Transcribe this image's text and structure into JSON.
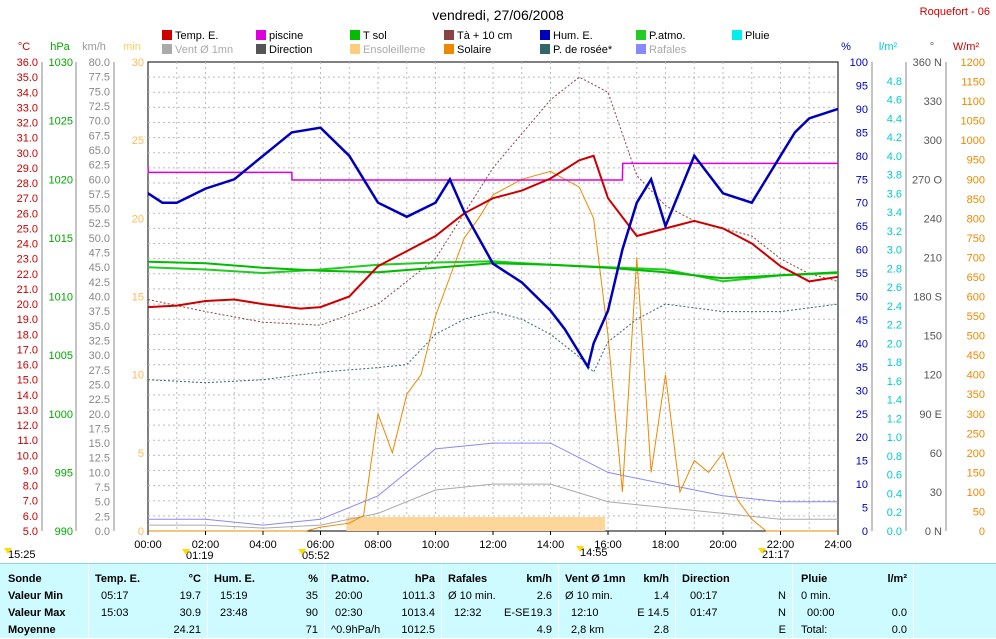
{
  "title": "vendredi, 27/06/2008",
  "station": "Roquefort - 06",
  "chart_data": {
    "type": "line",
    "title": "vendredi, 27/06/2008",
    "x_ticks": [
      "00:00",
      "02:00",
      "04:00",
      "06:00",
      "08:00",
      "10:00",
      "12:00",
      "14:00",
      "16:00",
      "18:00",
      "20:00",
      "22:00",
      "24:00"
    ],
    "x_range_hours": [
      0,
      24
    ],
    "grid": true,
    "legend_position": "top",
    "legend": [
      {
        "name": "Temp. E.",
        "color": "#cc0000"
      },
      {
        "name": "piscine",
        "color": "#dd00dd"
      },
      {
        "name": "T sol",
        "color": "#00bb00"
      },
      {
        "name": "Tà + 10 cm",
        "color": "#884444"
      },
      {
        "name": "Hum. E.",
        "color": "#0000bb"
      },
      {
        "name": "P.atmo.",
        "color": "#22cc22"
      },
      {
        "name": "Pluie",
        "color": "#00eeee"
      },
      {
        "name": "Vent Ø 1mn",
        "color": "#aaaaaa"
      },
      {
        "name": "Direction",
        "color": "#555555"
      },
      {
        "name": "Ensoleilleme",
        "color": "#ffcc80"
      },
      {
        "name": "Solaire",
        "color": "#ee8800"
      },
      {
        "name": "P. de rosée*",
        "color": "#336666"
      },
      {
        "name": "Rafales",
        "color": "#8888ff"
      }
    ],
    "axes": {
      "temp_c": {
        "unit": "°C",
        "min": 5,
        "max": 36,
        "step": 1,
        "color": "#cc0000"
      },
      "pressure_hpa": {
        "unit": "hPa",
        "min": 990,
        "max": 1030,
        "color": "#00aa00"
      },
      "wind_kmh": {
        "unit": "km/h",
        "min": 0,
        "max": 80,
        "color": "#999999"
      },
      "minutes": {
        "unit": "min",
        "min": 0,
        "max": 30,
        "color": "#ffcc66"
      },
      "humidity_pct": {
        "unit": "%",
        "min": 0,
        "max": 100,
        "color": "#0000bb"
      },
      "rain_lm2": {
        "unit": "l/m²",
        "min": 0,
        "max": 5,
        "color": "#00cccc"
      },
      "direction_deg": {
        "unit": "°",
        "min": 0,
        "max": 360,
        "labels": [
          "0 N",
          "30",
          "60",
          "90 E",
          "120",
          "150",
          "180 S",
          "210",
          "240",
          "270 O",
          "300",
          "330",
          "360 N"
        ]
      },
      "solar_wm2": {
        "unit": "W/m²",
        "min": 0,
        "max": 1200,
        "color": "#ee8800"
      }
    },
    "series": [
      {
        "name": "Temp. E.",
        "axis": "temp_c",
        "x": [
          0,
          1,
          2,
          3,
          4,
          5.3,
          6,
          7,
          8,
          9,
          10,
          11,
          12,
          13,
          14,
          15,
          15.5,
          16,
          17,
          18,
          19,
          20,
          21,
          22,
          23,
          24
        ],
        "values": [
          19.8,
          19.9,
          20.2,
          20.3,
          20.0,
          19.7,
          19.8,
          20.5,
          22.5,
          23.5,
          24.5,
          26.0,
          27.0,
          27.5,
          28.3,
          29.5,
          29.8,
          27.0,
          24.5,
          25.0,
          25.5,
          25.0,
          24.0,
          22.5,
          21.5,
          21.8
        ]
      },
      {
        "name": "Hum. E.",
        "axis": "humidity_pct",
        "x": [
          0,
          0.5,
          1,
          2,
          3,
          4,
          5,
          6,
          7,
          8,
          9,
          10,
          10.5,
          11,
          12,
          13,
          14,
          14.5,
          15.3,
          15.5,
          16,
          16.5,
          17,
          17.5,
          18,
          19,
          20,
          21,
          22,
          22.5,
          23,
          24
        ],
        "values": [
          72,
          70,
          70,
          73,
          75,
          80,
          85,
          86,
          80,
          70,
          67,
          70,
          75,
          68,
          57,
          53,
          47,
          43,
          35,
          40,
          47,
          60,
          70,
          75,
          65,
          80,
          72,
          70,
          80,
          85,
          88,
          90
        ]
      },
      {
        "name": "T sol",
        "axis": "temp_c",
        "x": [
          0,
          2,
          4,
          6,
          8,
          10,
          12,
          14,
          16,
          18,
          20,
          22,
          24
        ],
        "values": [
          22.8,
          22.7,
          22.4,
          22.2,
          22.1,
          22.4,
          22.7,
          22.6,
          22.4,
          22.1,
          21.7,
          21.9,
          22.1
        ]
      },
      {
        "name": "piscine",
        "axis": "temp_c",
        "x": [
          0,
          0.01,
          5,
          5.01,
          16.5,
          16.51,
          24
        ],
        "values": [
          29.1,
          28.7,
          28.7,
          28.2,
          28.2,
          29.3,
          29.3
        ]
      },
      {
        "name": "P.atmo.",
        "axis": "pressure_hpa",
        "x": [
          0,
          2,
          4,
          6,
          8,
          10,
          12,
          14,
          16,
          18,
          20,
          22,
          24
        ],
        "values": [
          1012.5,
          1012.3,
          1012.0,
          1012.3,
          1012.7,
          1012.9,
          1013.0,
          1012.7,
          1012.5,
          1012.3,
          1011.3,
          1011.8,
          1012.0
        ]
      },
      {
        "name": "Tà + 10 cm",
        "axis": "temp_c",
        "x": [
          0,
          2,
          4,
          6,
          8,
          10,
          12,
          14,
          15,
          16,
          17,
          18,
          19,
          20,
          21,
          22,
          23,
          24
        ],
        "values": [
          20.3,
          19.5,
          18.8,
          18.6,
          20.0,
          23.0,
          29.0,
          33.5,
          35.0,
          34.0,
          28.5,
          26.5,
          25.5,
          25.0,
          24.5,
          23.0,
          22.0,
          21.5
        ]
      },
      {
        "name": "P. de rosée*",
        "axis": "temp_c",
        "x": [
          0,
          2,
          4,
          6,
          8,
          9,
          10,
          11,
          12,
          13,
          14,
          15,
          15.5,
          16,
          17,
          18,
          20,
          22,
          24
        ],
        "values": [
          15.0,
          14.8,
          15.0,
          15.5,
          15.8,
          16.0,
          18.0,
          19.0,
          19.5,
          19.0,
          18.0,
          16.5,
          15.5,
          17.5,
          19.0,
          20.0,
          19.5,
          19.5,
          20.0
        ]
      },
      {
        "name": "Solaire",
        "axis": "solar_wm2",
        "x": [
          0,
          5.5,
          6,
          7,
          7.5,
          8,
          8.5,
          9,
          9.5,
          10,
          10.5,
          11,
          11.5,
          12,
          12.5,
          13,
          13.5,
          14,
          14.5,
          15,
          15.5,
          16,
          16.5,
          17,
          17.5,
          18,
          18.5,
          19,
          19.5,
          20,
          20.5,
          21,
          21.5,
          24
        ],
        "values": [
          0,
          0,
          10,
          20,
          40,
          300,
          200,
          350,
          400,
          550,
          650,
          750,
          800,
          860,
          880,
          900,
          910,
          920,
          900,
          880,
          800,
          500,
          100,
          700,
          150,
          400,
          100,
          180,
          150,
          200,
          80,
          30,
          0,
          0
        ]
      },
      {
        "name": "Rafales",
        "axis": "wind_kmh",
        "x": [
          0,
          2,
          4,
          6,
          8,
          10,
          12,
          14,
          16,
          18,
          20,
          22,
          24
        ],
        "values": [
          2,
          2,
          1,
          2,
          6,
          14,
          15,
          15,
          10,
          8,
          6,
          5,
          5
        ]
      },
      {
        "name": "Vent Ø 1mn",
        "axis": "wind_kmh",
        "x": [
          0,
          2,
          4,
          6,
          8,
          10,
          12,
          14,
          16,
          18,
          20,
          22,
          24
        ],
        "values": [
          1,
          1,
          0.5,
          1,
          3,
          7,
          8,
          8,
          5,
          4,
          3,
          2,
          2
        ]
      }
    ],
    "sunshine_band_hours": [
      6.9,
      15.9
    ],
    "time_markers": [
      {
        "label": "15:25",
        "marker": "yellow"
      },
      {
        "label": "01:19",
        "marker": "yellow"
      },
      {
        "label": "05:52",
        "marker": "yellow"
      },
      {
        "label": "14:55",
        "marker": "yellow"
      },
      {
        "label": "21:17",
        "marker": "yellow"
      }
    ]
  },
  "table": {
    "headers": {
      "sonde": "Sonde",
      "temp": "Temp. E.",
      "temp_unit": "°C",
      "hum": "Hum. E.",
      "hum_unit": "%",
      "patmo": "P.atmo.",
      "patmo_unit": "hPa",
      "raf": "Rafales",
      "raf_unit": "km/h",
      "vent": "Vent Ø 1mn",
      "vent_unit": "km/h",
      "dir": "Direction",
      "pluie": "Pluie",
      "pluie_unit": "l/m²"
    },
    "rows": [
      {
        "label": "Valeur Min",
        "temp_t": "05:17",
        "temp_v": "19.7",
        "hum_t": "15:19",
        "hum_v": "35",
        "patmo_t": "20:00",
        "patmo_v": "1011.3",
        "raf_a": "Ø 10 min.",
        "raf_b": "",
        "raf_v": "2.6",
        "vent_a": "Ø 10 min.",
        "vent_v": "1.4",
        "dir_t": "00:17",
        "dir_v": "N",
        "pluie_a": "0 min.",
        "pluie_v": ""
      },
      {
        "label": "Valeur Max",
        "temp_t": "15:03",
        "temp_v": "30.9",
        "hum_t": "23:48",
        "hum_v": "90",
        "patmo_t": "02:30",
        "patmo_v": "1013.4",
        "raf_a": "12:32",
        "raf_b": "E-SE",
        "raf_v": "19.3",
        "vent_a": "12:10",
        "vent_v": "E 14.5",
        "dir_t": "01:47",
        "dir_v": "N",
        "pluie_a": "00:00",
        "pluie_v": "0.0"
      },
      {
        "label": "Moyenne",
        "temp_t": "",
        "temp_v": "24.21",
        "hum_t": "",
        "hum_v": "71",
        "patmo_t": "^0.9hPa/h",
        "patmo_v": "1012.5",
        "raf_a": "",
        "raf_b": "",
        "raf_v": "4.9",
        "vent_a": "2,8 km",
        "vent_v": "2.8",
        "dir_t": "",
        "dir_v": "E",
        "pluie_a": "Total:",
        "pluie_v": "0.0"
      }
    ]
  }
}
